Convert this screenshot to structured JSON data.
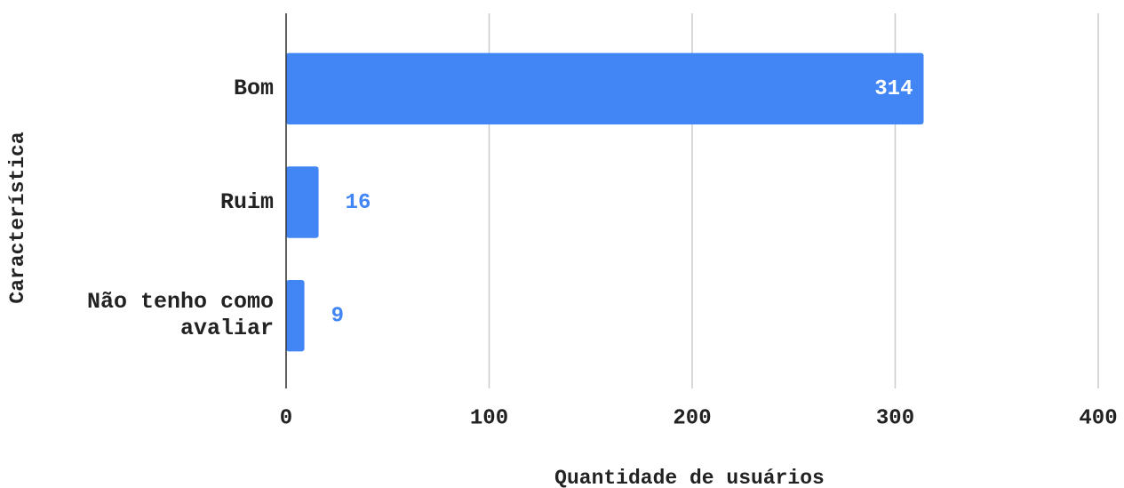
{
  "chart_data": {
    "type": "hbar",
    "categories": [
      "Bom",
      "Ruim",
      "Não tenho como avaliar"
    ],
    "values": [
      314,
      16,
      9
    ],
    "color": "#4285f4",
    "xlim": [
      0,
      400
    ],
    "xticks": [
      0,
      100,
      200,
      300,
      400
    ],
    "grid": true,
    "xlabel": "Quantidade de usuários",
    "ylabel": "Característica"
  }
}
